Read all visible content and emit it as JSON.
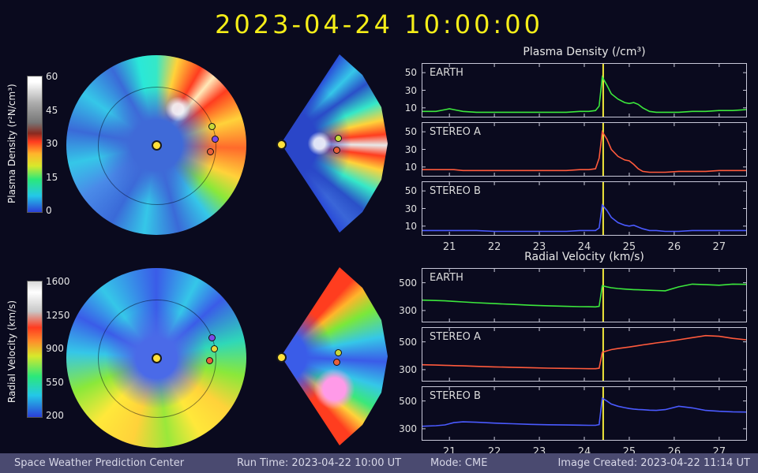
{
  "title": "2023-04-24 10:00:00",
  "colors": {
    "background": "#0a0a1e",
    "accent_yellow": "#f5ee18",
    "marker": "#f0e83a",
    "frame": "#c8c8d8",
    "statusbar_bg": "#4a4a70",
    "earth_green": "#3ce83c",
    "stereo_a_red": "#ff5a3c",
    "stereo_b_blue": "#4a5aff"
  },
  "density_map": {
    "colorbar_label": "Plasma Density (r²N/cm³)",
    "colorbar_ticks": [
      "60",
      "45",
      "30",
      "15",
      "0"
    ]
  },
  "velocity_map": {
    "colorbar_label": "Radial Velocity (km/s)",
    "colorbar_ticks": [
      "1600",
      "1250",
      "900",
      "550",
      "200"
    ]
  },
  "status_bar": {
    "center_name": "Space Weather Prediction Center",
    "run_time": "Run Time: 2023-04-22 10:00 UT",
    "mode": "Mode: CME",
    "created": "Image Created: 2023-04-22 11:14 UT"
  },
  "chart_data": [
    {
      "type": "line",
      "title": "Plasma Density (/cm³)",
      "xlabel": "",
      "ylabel": "",
      "xlim": [
        20.4,
        27.6
      ],
      "ylim": [
        0,
        60
      ],
      "x_ticks": [
        21,
        22,
        23,
        24,
        25,
        26,
        27
      ],
      "y_ticks": [
        10,
        30,
        50
      ],
      "marker_x": 24.42,
      "grid": false,
      "legend_position": "panel-top-left",
      "x": [
        20.4,
        20.7,
        20.9,
        21.0,
        21.1,
        21.3,
        21.6,
        22.0,
        22.4,
        22.8,
        23.2,
        23.6,
        23.9,
        24.1,
        24.25,
        24.33,
        24.4,
        24.5,
        24.6,
        24.75,
        24.9,
        25.0,
        25.1,
        25.2,
        25.3,
        25.45,
        25.6,
        25.8,
        26.1,
        26.4,
        26.7,
        27.0,
        27.3,
        27.6
      ],
      "panels": [
        {
          "name": "EARTH",
          "color": "#3ce83c",
          "values": [
            6,
            6,
            8,
            9,
            8,
            6,
            5,
            5,
            5,
            5,
            5,
            5,
            6,
            6,
            7,
            12,
            45,
            36,
            26,
            20,
            16,
            15,
            16,
            14,
            10,
            6,
            5,
            5,
            5,
            6,
            6,
            7,
            7,
            8
          ]
        },
        {
          "name": "STEREO A",
          "color": "#ff5a3c",
          "values": [
            7,
            7,
            7,
            7,
            7,
            6,
            6,
            6,
            6,
            6,
            6,
            6,
            7,
            7,
            8,
            20,
            50,
            42,
            30,
            22,
            18,
            17,
            13,
            8,
            5,
            4,
            4,
            4,
            5,
            5,
            5,
            6,
            6,
            6
          ]
        },
        {
          "name": "STEREO B",
          "color": "#4a5aff",
          "values": [
            5,
            5,
            5,
            5,
            5,
            5,
            5,
            4,
            4,
            4,
            4,
            4,
            5,
            5,
            5,
            8,
            34,
            28,
            20,
            14,
            11,
            10,
            11,
            9,
            7,
            5,
            5,
            4,
            4,
            5,
            5,
            5,
            5,
            5
          ]
        }
      ]
    },
    {
      "type": "line",
      "title": "Radial Velocity (km/s)",
      "xlabel": "",
      "ylabel": "",
      "xlim": [
        20.4,
        27.6
      ],
      "ylim": [
        220,
        600
      ],
      "x_ticks": [
        21,
        22,
        23,
        24,
        25,
        26,
        27
      ],
      "y_ticks": [
        300,
        500
      ],
      "marker_x": 24.42,
      "grid": false,
      "legend_position": "panel-top-left",
      "x": [
        20.4,
        20.7,
        20.9,
        21.0,
        21.1,
        21.3,
        21.6,
        22.0,
        22.4,
        22.8,
        23.2,
        23.6,
        23.9,
        24.1,
        24.25,
        24.33,
        24.4,
        24.5,
        24.6,
        24.75,
        24.9,
        25.0,
        25.1,
        25.2,
        25.3,
        25.45,
        25.6,
        25.8,
        26.1,
        26.4,
        26.7,
        27.0,
        27.3,
        27.6
      ],
      "panels": [
        {
          "name": "EARTH",
          "color": "#3ce83c",
          "values": [
            375,
            372,
            370,
            368,
            366,
            362,
            356,
            350,
            344,
            338,
            334,
            330,
            328,
            327,
            326,
            330,
            478,
            470,
            464,
            458,
            454,
            452,
            450,
            449,
            448,
            446,
            444,
            442,
            470,
            490,
            486,
            482,
            490,
            488
          ]
        },
        {
          "name": "STEREO A",
          "color": "#ff5a3c",
          "values": [
            335,
            333,
            331,
            330,
            329,
            327,
            324,
            320,
            317,
            314,
            311,
            309,
            308,
            307,
            307,
            310,
            425,
            435,
            444,
            452,
            459,
            463,
            468,
            473,
            478,
            485,
            492,
            500,
            515,
            530,
            545,
            540,
            525,
            515
          ]
        },
        {
          "name": "STEREO B",
          "color": "#4a5aff",
          "values": [
            318,
            322,
            328,
            336,
            344,
            350,
            347,
            341,
            336,
            332,
            329,
            327,
            326,
            325,
            325,
            330,
            520,
            500,
            478,
            462,
            452,
            446,
            442,
            439,
            437,
            434,
            432,
            438,
            462,
            450,
            432,
            426,
            422,
            420
          ]
        }
      ]
    }
  ]
}
